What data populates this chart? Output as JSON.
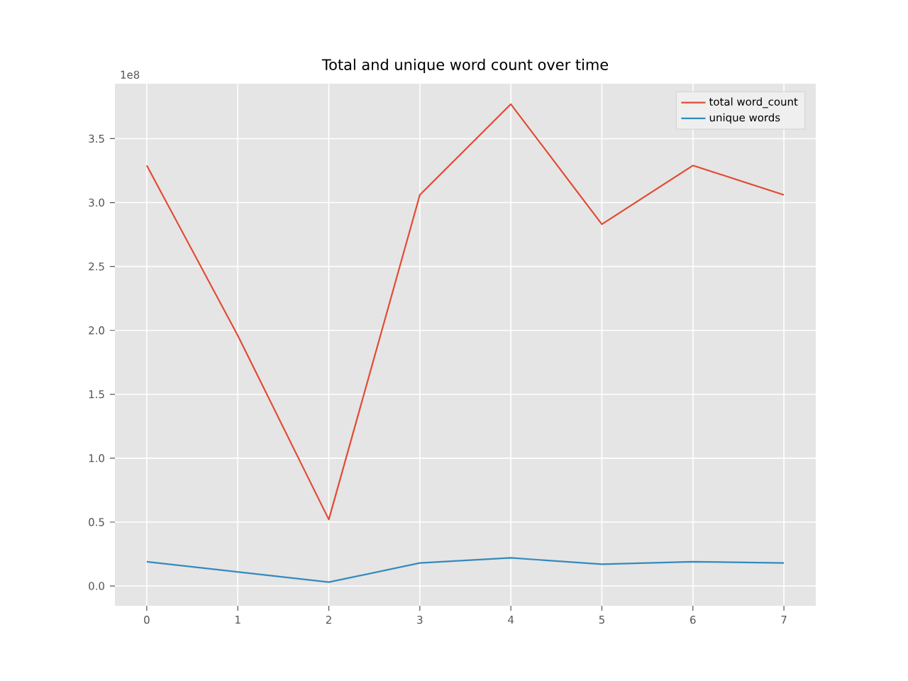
{
  "chart_data": {
    "type": "line",
    "title": "Total and unique word count over time",
    "x": [
      0,
      1,
      2,
      3,
      4,
      5,
      6,
      7
    ],
    "series": [
      {
        "name": "total word_count",
        "color": "#e24a33",
        "values": [
          3.29,
          1.96,
          0.52,
          3.06,
          3.77,
          2.83,
          3.29,
          3.06
        ]
      },
      {
        "name": "unique words",
        "color": "#348abd",
        "values": [
          0.19,
          0.11,
          0.03,
          0.18,
          0.22,
          0.17,
          0.19,
          0.18
        ]
      }
    ],
    "xlim": [
      -0.35,
      7.35
    ],
    "ylim": [
      -0.155,
      3.93
    ],
    "xticks": [
      0,
      1,
      2,
      3,
      4,
      5,
      6,
      7
    ],
    "yticks": [
      {
        "value": 0,
        "label": "0.0"
      },
      {
        "value": 0.5,
        "label": "0.5"
      },
      {
        "value": 1,
        "label": "1.0"
      },
      {
        "value": 1.5,
        "label": "1.5"
      },
      {
        "value": 2,
        "label": "2.0"
      },
      {
        "value": 2.5,
        "label": "2.5"
      },
      {
        "value": 3,
        "label": "3.0"
      },
      {
        "value": 3.5,
        "label": "3.5"
      }
    ],
    "annotations": [
      "1e8"
    ],
    "grid": true,
    "legend": "top right",
    "marker": "none",
    "line_style": "solid"
  }
}
